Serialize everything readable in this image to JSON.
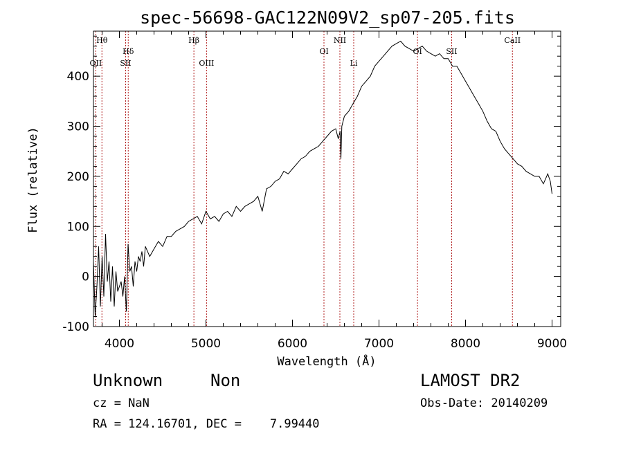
{
  "chart_data": {
    "type": "line",
    "title": "spec-56698-GAC122N09V2_sp07-205.fits",
    "xlabel": "Wavelength (Å)",
    "ylabel": "Flux (relative)",
    "xlim": [
      3700,
      9100
    ],
    "ylim": [
      -100,
      490
    ],
    "xticks": [
      4000,
      5000,
      6000,
      7000,
      8000,
      9000
    ],
    "yticks": [
      -100,
      0,
      100,
      200,
      300,
      400
    ],
    "grid": false,
    "line_color": "#000000",
    "marker_color": "#b22222",
    "series": [
      {
        "x": [
          3700,
          3720,
          3740,
          3760,
          3780,
          3800,
          3820,
          3840,
          3860,
          3880,
          3900,
          3920,
          3940,
          3960,
          3980,
          4000,
          4020,
          4040,
          4060,
          4080,
          4100,
          4120,
          4140,
          4160,
          4180,
          4200,
          4220,
          4240,
          4260,
          4280,
          4300,
          4350,
          4400,
          4450,
          4500,
          4550,
          4600,
          4650,
          4700,
          4750,
          4800,
          4850,
          4900,
          4950,
          5000,
          5050,
          5100,
          5150,
          5200,
          5250,
          5300,
          5350,
          5400,
          5450,
          5500,
          5550,
          5600,
          5650,
          5700,
          5750,
          5800,
          5850,
          5900,
          5950,
          6000,
          6050,
          6100,
          6150,
          6200,
          6250,
          6300,
          6350,
          6400,
          6450,
          6500,
          6530,
          6550,
          6560,
          6570,
          6600,
          6650,
          6700,
          6750,
          6800,
          6850,
          6900,
          6950,
          7000,
          7050,
          7100,
          7150,
          7200,
          7250,
          7300,
          7350,
          7400,
          7450,
          7500,
          7550,
          7600,
          7650,
          7700,
          7750,
          7800,
          7850,
          7900,
          7950,
          8000,
          8050,
          8100,
          8150,
          8200,
          8250,
          8300,
          8350,
          8400,
          8450,
          8500,
          8550,
          8600,
          8650,
          8700,
          8750,
          8800,
          8850,
          8900,
          8950,
          8980,
          9000
        ],
        "values": [
          30,
          -80,
          -20,
          60,
          -60,
          40,
          -40,
          85,
          -10,
          30,
          -50,
          20,
          -60,
          10,
          -30,
          -20,
          -10,
          -40,
          0,
          -70,
          65,
          10,
          20,
          -20,
          30,
          10,
          40,
          30,
          50,
          20,
          60,
          40,
          55,
          70,
          60,
          80,
          80,
          90,
          95,
          100,
          110,
          115,
          120,
          105,
          130,
          115,
          120,
          110,
          125,
          130,
          120,
          140,
          130,
          140,
          145,
          150,
          160,
          130,
          175,
          180,
          190,
          195,
          210,
          205,
          215,
          225,
          235,
          240,
          250,
          255,
          260,
          270,
          280,
          290,
          295,
          275,
          290,
          235,
          300,
          320,
          330,
          345,
          360,
          380,
          390,
          400,
          420,
          430,
          440,
          450,
          460,
          465,
          470,
          460,
          455,
          450,
          455,
          460,
          450,
          445,
          440,
          445,
          435,
          435,
          420,
          420,
          405,
          390,
          375,
          360,
          345,
          330,
          310,
          295,
          290,
          270,
          255,
          245,
          235,
          225,
          220,
          210,
          205,
          200,
          200,
          185,
          205,
          190,
          165
        ]
      }
    ],
    "annotations": [
      {
        "label": "Hθ",
        "x": 3798,
        "row": 1
      },
      {
        "label": "OII",
        "x": 3727,
        "row": 2
      },
      {
        "label": "Hδ",
        "x": 4102,
        "row": 1.5
      },
      {
        "label": "SII",
        "x": 4072,
        "row": 2
      },
      {
        "label": "Hβ",
        "x": 4861,
        "row": 1
      },
      {
        "label": "OIII",
        "x": 5007,
        "row": 2
      },
      {
        "label": "OI",
        "x": 6364,
        "row": 1.5
      },
      {
        "label": "NII",
        "x": 6548,
        "row": 1
      },
      {
        "label": "Li",
        "x": 6708,
        "row": 2
      },
      {
        "label": "OI",
        "x": 7445,
        "row": 1.5
      },
      {
        "label": "SII",
        "x": 7840,
        "row": 1.5
      },
      {
        "label": "CaII",
        "x": 8542,
        "row": 1
      }
    ]
  },
  "info": {
    "class": "Unknown",
    "subclass": "Non",
    "survey": "LAMOST DR2",
    "cz": "cz = NaN",
    "obs_date": "Obs-Date: 20140209",
    "radec": "RA = 124.16701, DEC =    7.99440"
  }
}
